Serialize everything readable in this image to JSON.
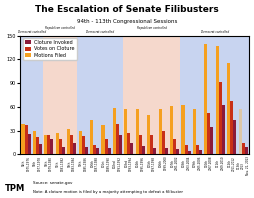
{
  "chart_data": {
    "type": "bar",
    "title": "The Escalation of Senate Filibusters",
    "subtitle": "94th - 113th Congressional Sessions",
    "annotations": [
      "TPM",
      "Source: senate.gov",
      "Note: A cloture motion is filed by a majority attempting to defeat a filibuster"
    ],
    "categories": [
      "94th\n1975-1976",
      "95th\n1977-1978",
      "96th\n1979-1980",
      "97th\n1981-1982",
      "98th\n1983-1984",
      "99th\n1985-1986",
      "100th\n1987-1988",
      "101st\n1989-1990",
      "102nd\n1991-1992",
      "103rd\n1993-1994",
      "104th\n1995-1996",
      "105th\n1997-1998",
      "106th\n1999-2000",
      "107th\n2001-2002",
      "108th\n2003-2004",
      "109th\n2005-2006",
      "110th\n2007-2008",
      "111th\n2009-2010",
      "112th\n2011-2012",
      "113th\n2013\nNov. 21, 2013"
    ],
    "series": [
      {
        "name": "Motions Filed",
        "color": "#f5a020",
        "colors": [
          "#f5a020",
          "#f5a020",
          "#f5a020",
          "#f5a020",
          "#f5a020",
          "#f5a020",
          "#f5a020",
          "#f5a020",
          "#f5a020",
          "#f5a020",
          "#f5a020",
          "#f5a020",
          "#f5a020",
          "#f5a020",
          "#f5a020",
          "#f5a020",
          "#f5a020",
          "#f5a020",
          "#f5a020",
          "#ddc8a8"
        ],
        "values": [
          38,
          29,
          24,
          27,
          32,
          30,
          43,
          37,
          59,
          58,
          58,
          50,
          58,
          61,
          62,
          58,
          139,
          137,
          115,
          58
        ]
      },
      {
        "name": "Votes on Cloture",
        "color": "#c83018",
        "values": [
          37,
          22,
          24,
          20,
          25,
          23,
          12,
          19,
          38,
          27,
          24,
          25,
          30,
          20,
          12,
          12,
          52,
          91,
          68,
          15
        ]
      },
      {
        "name": "Cloture Invoked",
        "color": "#8b1a3a",
        "values": [
          26,
          13,
          19,
          10,
          14,
          9,
          8,
          8,
          25,
          14,
          11,
          8,
          8,
          7,
          4,
          5,
          35,
          63,
          44,
          10
        ]
      }
    ],
    "regions": [
      {
        "start": 0,
        "end": 2,
        "color": "#c8d4f0",
        "label": "Democrat controlled"
      },
      {
        "start": 2,
        "end": 5,
        "color": "#f5d8cc",
        "label": "Republican controlled"
      },
      {
        "start": 5,
        "end": 9,
        "color": "#c8d4f0",
        "label": "Democrat controlled"
      },
      {
        "start": 9,
        "end": 14,
        "color": "#f5d8cc",
        "label": "Republican controlled"
      },
      {
        "start": 14,
        "end": 20,
        "color": "#c8d4f0",
        "label": "Democrat controlled"
      }
    ],
    "ylim": [
      0,
      150
    ],
    "yticks": [
      0,
      30,
      60,
      90,
      120,
      150
    ],
    "grid": false,
    "legend": "upper left"
  }
}
